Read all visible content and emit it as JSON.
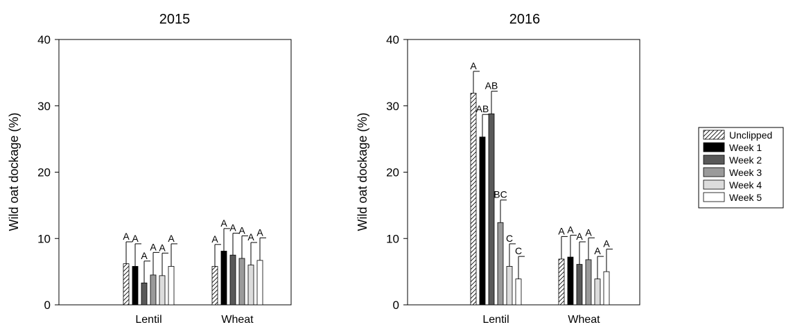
{
  "chart_data": [
    {
      "type": "bar",
      "title": "2015",
      "xlabel": "",
      "ylabel": "Wild oat dockage (%)",
      "ylim": [
        0,
        40
      ],
      "yticks": [
        0,
        10,
        20,
        30,
        40
      ],
      "categories": [
        "Lentil",
        "Wheat"
      ],
      "series": [
        {
          "name": "Unclipped",
          "values": [
            6.2,
            5.8
          ],
          "errors": [
            3.3,
            3.3
          ],
          "letters": [
            "A",
            "A"
          ]
        },
        {
          "name": "Week 1",
          "values": [
            5.8,
            8.1
          ],
          "errors": [
            3.4,
            3.4
          ],
          "letters": [
            "A",
            "A"
          ]
        },
        {
          "name": "Week 2",
          "values": [
            3.3,
            7.5
          ],
          "errors": [
            3.3,
            3.3
          ],
          "letters": [
            "A",
            "A"
          ]
        },
        {
          "name": "Week 3",
          "values": [
            4.5,
            7.0
          ],
          "errors": [
            3.4,
            3.4
          ],
          "letters": [
            "A",
            "A"
          ]
        },
        {
          "name": "Week 4",
          "values": [
            4.4,
            6.0
          ],
          "errors": [
            3.4,
            3.4
          ],
          "letters": [
            "A",
            "A"
          ]
        },
        {
          "name": "Week 5",
          "values": [
            5.8,
            6.7
          ],
          "errors": [
            3.4,
            3.4
          ],
          "letters": [
            "A",
            "A"
          ]
        }
      ]
    },
    {
      "type": "bar",
      "title": "2016",
      "xlabel": "",
      "ylabel": "Wild oat dockage (%)",
      "ylim": [
        0,
        40
      ],
      "yticks": [
        0,
        10,
        20,
        30,
        40
      ],
      "categories": [
        "Lentil",
        "Wheat"
      ],
      "series": [
        {
          "name": "Unclipped",
          "values": [
            31.9,
            6.9
          ],
          "errors": [
            3.3,
            3.4
          ],
          "letters": [
            "A",
            "A"
          ]
        },
        {
          "name": "Week 1",
          "values": [
            25.3,
            7.2
          ],
          "errors": [
            3.4,
            3.3
          ],
          "letters": [
            "AB",
            "A"
          ]
        },
        {
          "name": "Week 2",
          "values": [
            28.8,
            6.1
          ],
          "errors": [
            3.4,
            3.4
          ],
          "letters": [
            "AB",
            "A"
          ]
        },
        {
          "name": "Week 3",
          "values": [
            12.4,
            6.8
          ],
          "errors": [
            3.4,
            3.3
          ],
          "letters": [
            "BC",
            "A"
          ]
        },
        {
          "name": "Week 4",
          "values": [
            5.8,
            3.9
          ],
          "errors": [
            3.4,
            3.4
          ],
          "letters": [
            "C",
            "A"
          ]
        },
        {
          "name": "Week 5",
          "values": [
            3.9,
            5.0
          ],
          "errors": [
            3.4,
            3.4
          ],
          "letters": [
            "C",
            "A"
          ]
        }
      ]
    }
  ],
  "legend": {
    "placement": "right",
    "entries": [
      "Unclipped",
      "Week 1",
      "Week 2",
      "Week 3",
      "Week 4",
      "Week 5"
    ]
  },
  "series_fills": {
    "Unclipped": "hatch",
    "Week 1": "#000000",
    "Week 2": "#595959",
    "Week 3": "#9a9a9a",
    "Week 4": "#dcdcdc",
    "Week 5": "#ffffff"
  }
}
